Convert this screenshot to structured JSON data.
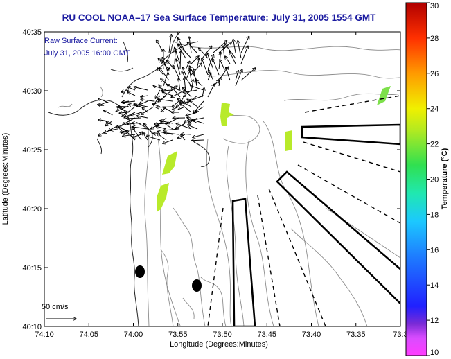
{
  "title": "RU COOL  NOAA–17  Sea Surface Temperature:  July 31, 2005 1554 GMT",
  "annotations": {
    "line1": "Raw Surface Current:",
    "line2": "July 31, 2005 16:00 GMT",
    "scale_label": "50 cm/s"
  },
  "colors": {
    "title": "#1b1ba0",
    "sst_patch": "#b8ea2a",
    "sst_patch_east": "#7de04a",
    "land": "#ffffff",
    "contour": "#8c8c8c"
  },
  "chart_data": {
    "type": "map",
    "title": "RU COOL  NOAA–17  Sea Surface Temperature:  July 31, 2005 1554 GMT",
    "xlabel": "Longitude (Degrees:Minutes)",
    "ylabel": "Latitude (Degrees:Minutes)",
    "x_ticks": [
      "74:10",
      "74:05",
      "74:00",
      "73:55",
      "73:50",
      "73:45",
      "73:40",
      "73:35",
      "73:3"
    ],
    "y_ticks": [
      "40:10",
      "40:15",
      "40:20",
      "40:25",
      "40:30",
      "40:35"
    ],
    "colorbar": {
      "label": "Temperature (°C)",
      "min": 10,
      "max": 30,
      "ticks": [
        "10",
        "12",
        "14",
        "16",
        "18",
        "20",
        "22",
        "24",
        "26",
        "28",
        "30"
      ],
      "colormap": "jet-like (magenta → blue → cyan → green → yellow → orange → red)"
    },
    "sst_patches_temperature_c": [
      22,
      22,
      22,
      22,
      21
    ]
  }
}
